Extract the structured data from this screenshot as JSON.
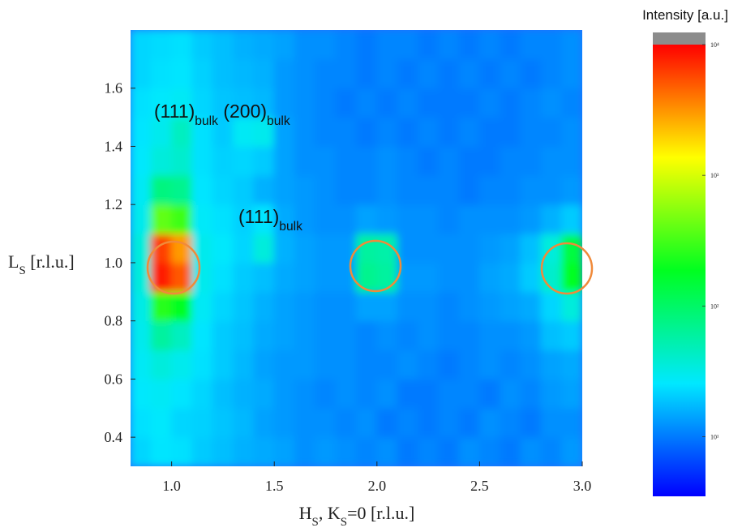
{
  "chart_data": {
    "type": "heatmap",
    "xlabel": [
      {
        "text": "H"
      },
      {
        "sub": "S"
      },
      {
        "text": ", K"
      },
      {
        "sub": "S"
      },
      {
        "text": "=0 [r.l.u.]"
      }
    ],
    "ylabel": [
      {
        "text": "L"
      },
      {
        "sub": "S"
      },
      {
        "text": " [r.l.u.]"
      }
    ],
    "colorbar_label": "Intensity [a.u.]",
    "xlim": [
      0.8,
      3.0
    ],
    "ylim": [
      0.3,
      1.8
    ],
    "xticks": [
      {
        "value": 1,
        "label": "1.0"
      },
      1.5,
      {
        "value": 2,
        "label": "2.0"
      },
      2.5,
      {
        "value": 3,
        "label": "3.0"
      }
    ],
    "yticks": [
      0.4,
      0.6,
      0.8,
      {
        "value": 1,
        "label": "1.0"
      },
      1.2,
      1.4,
      1.6
    ],
    "xbins": [
      0.8,
      0.9,
      1.0,
      1.1,
      1.2,
      1.3,
      1.4,
      1.5,
      1.6,
      1.7,
      1.8,
      1.9,
      2.0,
      2.1,
      2.2,
      2.3,
      2.4,
      2.5,
      2.6,
      2.7,
      2.8,
      2.9,
      3.0
    ],
    "ybins": [
      0.3,
      0.4,
      0.5,
      0.6,
      0.7,
      0.8,
      0.9,
      1.0,
      1.1,
      1.2,
      1.3,
      1.4,
      1.5,
      1.6,
      1.7,
      1.8
    ],
    "z": [
      [
        22,
        25,
        24,
        20,
        18,
        16,
        15,
        14,
        12,
        13,
        12,
        11,
        12,
        10,
        11,
        10,
        12,
        11,
        10,
        12,
        11,
        13
      ],
      [
        24,
        26,
        22,
        21,
        19,
        17,
        14,
        13,
        12,
        12,
        11,
        12,
        10,
        11,
        10,
        11,
        10,
        12,
        11,
        10,
        12,
        12
      ],
      [
        26,
        28,
        25,
        22,
        18,
        16,
        15,
        13,
        12,
        11,
        12,
        11,
        12,
        10,
        10,
        11,
        11,
        10,
        12,
        11,
        13,
        14
      ],
      [
        28,
        35,
        30,
        24,
        20,
        17,
        14,
        13,
        13,
        12,
        12,
        11,
        11,
        12,
        11,
        10,
        11,
        12,
        11,
        12,
        14,
        15
      ],
      [
        30,
        60,
        45,
        25,
        20,
        18,
        15,
        14,
        13,
        12,
        12,
        11,
        12,
        11,
        12,
        11,
        11,
        12,
        12,
        13,
        18,
        20
      ],
      [
        32,
        250,
        180,
        28,
        22,
        19,
        16,
        14,
        13,
        12,
        12,
        14,
        14,
        12,
        12,
        11,
        12,
        13,
        14,
        15,
        22,
        35
      ],
      [
        35,
        8000,
        5000,
        30,
        24,
        20,
        18,
        15,
        14,
        13,
        13,
        70,
        60,
        13,
        13,
        12,
        12,
        14,
        15,
        20,
        40,
        180
      ],
      [
        35,
        6000,
        3000,
        30,
        26,
        22,
        35,
        16,
        14,
        13,
        13,
        60,
        55,
        12,
        12,
        12,
        12,
        13,
        14,
        18,
        35,
        140
      ],
      [
        30,
        400,
        300,
        27,
        24,
        21,
        25,
        15,
        13,
        12,
        12,
        14,
        13,
        12,
        12,
        11,
        12,
        12,
        12,
        13,
        16,
        20
      ],
      [
        28,
        80,
        70,
        25,
        22,
        20,
        16,
        14,
        13,
        12,
        11,
        11,
        12,
        11,
        11,
        11,
        10,
        11,
        11,
        12,
        12,
        13
      ],
      [
        26,
        35,
        40,
        24,
        21,
        22,
        20,
        14,
        12,
        12,
        11,
        11,
        12,
        11,
        10,
        11,
        10,
        10,
        11,
        11,
        12,
        12
      ],
      [
        25,
        30,
        45,
        24,
        20,
        28,
        30,
        14,
        12,
        11,
        11,
        10,
        11,
        10,
        11,
        10,
        11,
        10,
        10,
        11,
        11,
        12
      ],
      [
        24,
        26,
        28,
        22,
        19,
        18,
        17,
        13,
        12,
        11,
        10,
        11,
        10,
        11,
        10,
        10,
        10,
        11,
        10,
        11,
        12,
        11
      ],
      [
        22,
        24,
        25,
        21,
        18,
        17,
        16,
        13,
        12,
        11,
        11,
        10,
        11,
        10,
        11,
        10,
        11,
        10,
        11,
        10,
        11,
        12
      ],
      [
        22,
        23,
        24,
        20,
        18,
        16,
        15,
        14,
        12,
        12,
        11,
        10,
        11,
        11,
        10,
        11,
        10,
        11,
        10,
        11,
        11,
        12
      ]
    ],
    "clim": [
      3.5,
      10000
    ],
    "color_scale": "log",
    "colormap": [
      "#0000ff",
      "#00e8ff",
      "#00ff20",
      "#ffff00",
      "#ff0000"
    ],
    "over_color": "#8c8c8c",
    "cticks": [
      {
        "value": 10000,
        "label": "10⁴"
      },
      {
        "value": 1000,
        "label": "10³"
      },
      {
        "value": 100,
        "label": "10²"
      },
      {
        "value": 10,
        "label": "10¹"
      }
    ],
    "annotations": [
      [
        {
          "text": "(111)"
        },
        {
          "sub": "bulk"
        },
        {
          "text": " (200)"
        },
        {
          "sub": "bulk"
        }
      ],
      [
        {
          "text": "(111)"
        },
        {
          "sub": "bulk"
        }
      ]
    ]
  }
}
